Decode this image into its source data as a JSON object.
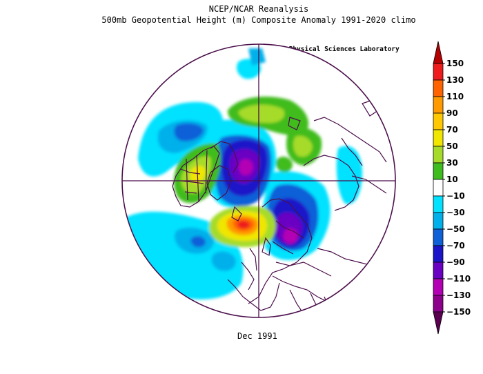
{
  "header": {
    "title": "NCEP/NCAR Reanalysis",
    "subtitle": "500mb Geopotential Height (m) Composite Anomaly 1991-2020 climo",
    "credit": "NOAA Physical Sciences Laboratory"
  },
  "footer": {
    "period": "Dec 1991"
  },
  "colorbar": {
    "labels": [
      "150",
      "130",
      "110",
      "90",
      "70",
      "50",
      "30",
      "10",
      "-10",
      "-30",
      "-50",
      "-70",
      "-90",
      "-110",
      "-130",
      "-150"
    ],
    "colors": [
      "#b40000",
      "#ee1c1c",
      "#ff6400",
      "#ff9a00",
      "#ffc800",
      "#f0e600",
      "#a6db2a",
      "#3fbc1e",
      "#ffffff",
      "#00e2ff",
      "#00b0ea",
      "#1060d8",
      "#1c14c8",
      "#6a00c2",
      "#b400b4",
      "#8c008c",
      "#5a0050"
    ]
  },
  "colors": {
    "outline": "#4b0f4b",
    "land": "#4b0f4b"
  }
}
